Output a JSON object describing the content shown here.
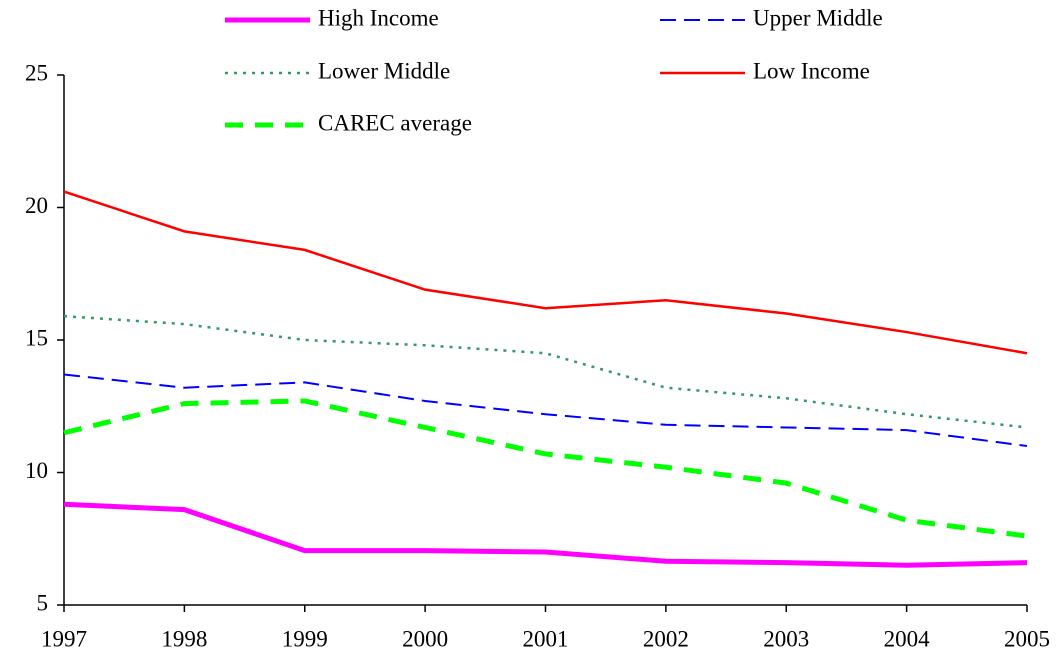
{
  "chart_data": {
    "type": "line",
    "x": [
      1997,
      1998,
      1999,
      2000,
      2001,
      2002,
      2003,
      2004,
      2005
    ],
    "xlim": [
      1997,
      2005
    ],
    "xticks": [
      1997,
      1998,
      1999,
      2000,
      2001,
      2002,
      2003,
      2004,
      2005
    ],
    "ylim": [
      5,
      25
    ],
    "yticks": [
      5,
      10,
      15,
      20,
      25
    ],
    "grid": false,
    "legend": "top",
    "series": [
      {
        "name": "High Income",
        "color": "#ff00ff",
        "style": "solid",
        "line_width": 5,
        "values": [
          8.8,
          8.6,
          7.05,
          7.05,
          7.0,
          6.65,
          6.6,
          6.5,
          6.6
        ]
      },
      {
        "name": "Upper Middle",
        "color": "#0000ff",
        "style": "dashed",
        "line_width": 2,
        "values": [
          13.7,
          13.2,
          13.4,
          12.7,
          12.2,
          11.8,
          11.7,
          11.6,
          11.0
        ]
      },
      {
        "name": "Lower Middle",
        "color": "#339966",
        "style": "dotted",
        "line_width": 2.5,
        "values": [
          15.9,
          15.6,
          15.0,
          14.8,
          14.5,
          13.2,
          12.8,
          12.2,
          11.7
        ]
      },
      {
        "name": "Low Income",
        "color": "#ff0000",
        "style": "solid",
        "line_width": 2.5,
        "values": [
          20.6,
          19.1,
          18.4,
          16.9,
          16.2,
          16.5,
          16.0,
          15.3,
          14.5
        ]
      },
      {
        "name": "CAREC average",
        "color": "#00ff00",
        "style": "dashed",
        "line_width": 5,
        "values": [
          11.5,
          12.6,
          12.7,
          11.7,
          10.7,
          10.2,
          9.6,
          8.2,
          7.6
        ]
      }
    ]
  }
}
